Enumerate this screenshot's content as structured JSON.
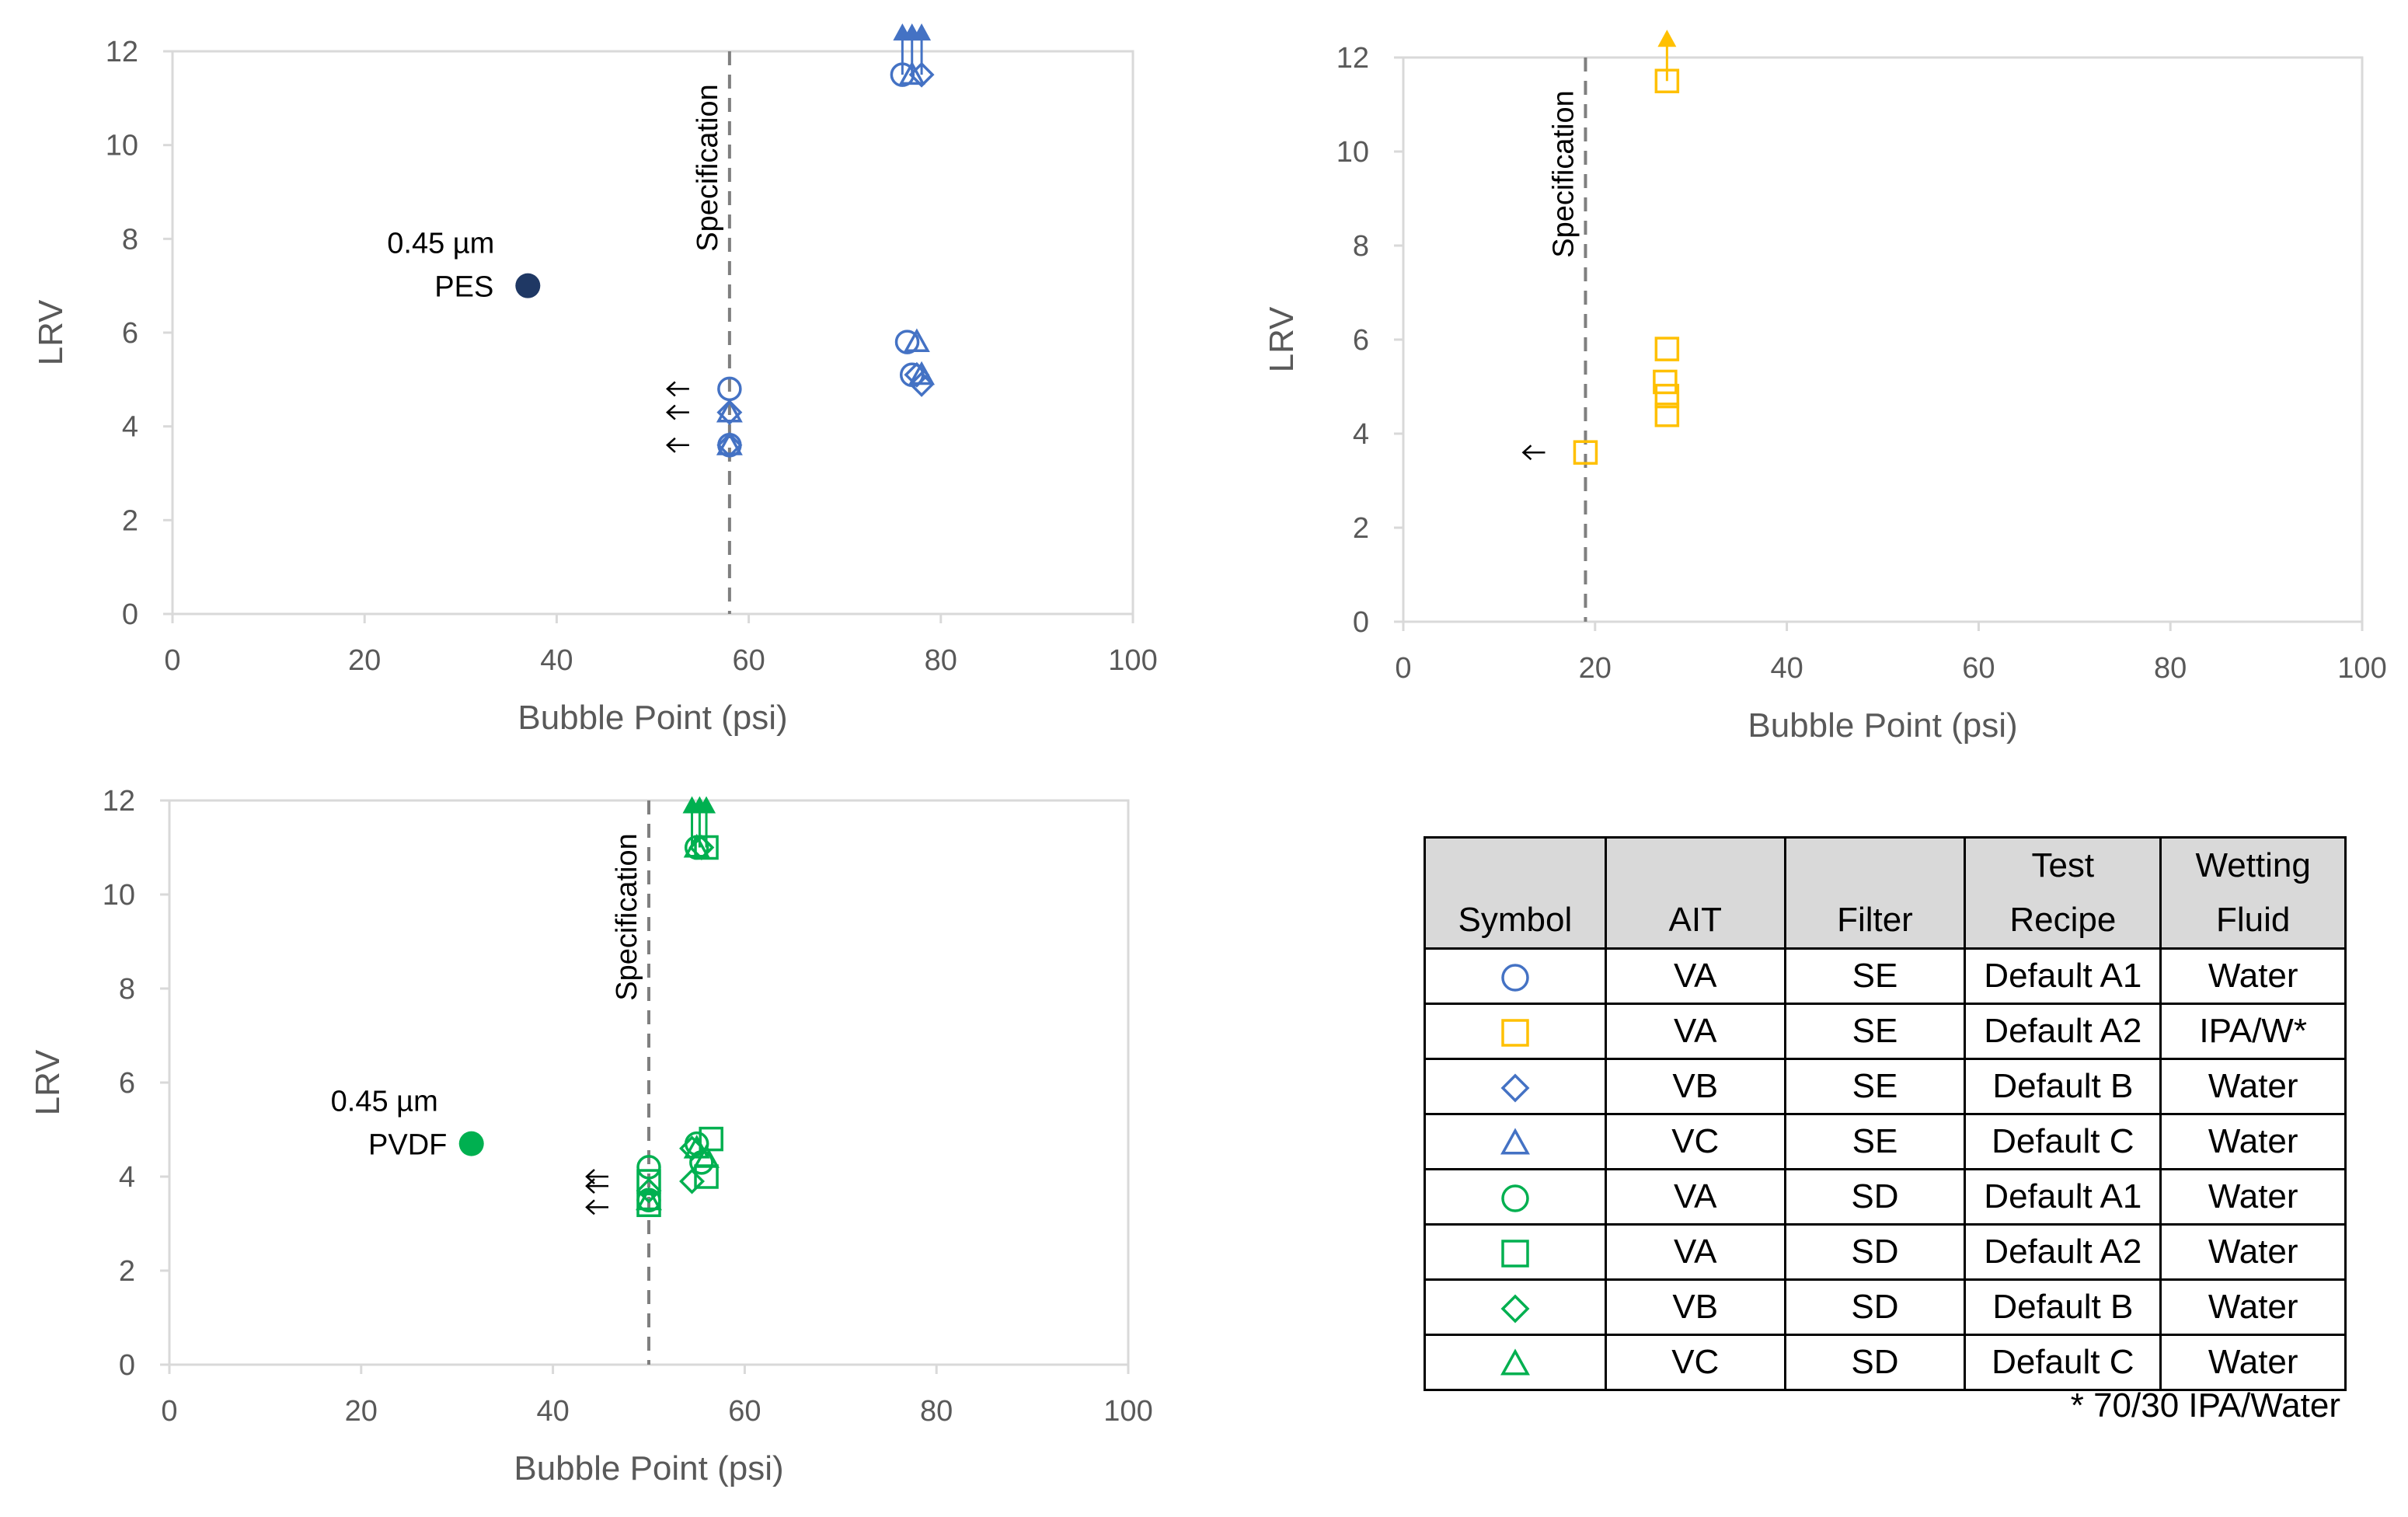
{
  "colors": {
    "blue": "#4472c4",
    "navy": "#1f3864",
    "yellow": "#ffc000",
    "green": "#00b050",
    "grid": "#d9d9d9",
    "spec_line": "#7f7f7f"
  },
  "chart_data": [
    {
      "type": "scatter",
      "panel": "top-left",
      "xlabel": "Bubble Point (psi)",
      "ylabel": "LRV",
      "xlim": [
        0,
        100
      ],
      "ylim": [
        0,
        12
      ],
      "xticks": [
        "0",
        "20",
        "40",
        "60",
        "80",
        "100"
      ],
      "yticks": [
        "0",
        "2",
        "4",
        "6",
        "8",
        "10",
        "12"
      ],
      "grid": "border only",
      "color": "#4472c4",
      "spec_line": {
        "x": 58,
        "label": "Specification"
      },
      "reference_point": {
        "x": 37,
        "y": 7,
        "color": "#1f3864",
        "label": [
          "0.45 µm",
          "PES"
        ]
      },
      "series": [
        {
          "marker": "circle",
          "points": [
            [
              58,
              4.8
            ],
            [
              58,
              3.6
            ],
            [
              76,
              11.5
            ],
            [
              76.5,
              5.8
            ],
            [
              77,
              5.1
            ]
          ]
        },
        {
          "marker": "diamond",
          "points": [
            [
              58,
              4.3
            ],
            [
              58,
              3.6
            ],
            [
              78,
              11.5
            ],
            [
              78,
              4.9
            ],
            [
              77.5,
              5.1
            ]
          ]
        },
        {
          "marker": "triangle",
          "points": [
            [
              58,
              4.3
            ],
            [
              58,
              3.6
            ],
            [
              77,
              11.5
            ],
            [
              77.5,
              5.8
            ],
            [
              78,
              5.1
            ]
          ]
        }
      ],
      "lower_bound_markers": [
        {
          "x": 58,
          "y": 4.8
        },
        {
          "x": 58,
          "y": 4.3
        },
        {
          "x": 58,
          "y": 3.6
        }
      ],
      "greater_than_markers": [
        {
          "x": 76,
          "y": 11.5
        },
        {
          "x": 77,
          "y": 11.5
        },
        {
          "x": 78,
          "y": 11.5
        }
      ]
    },
    {
      "type": "scatter",
      "panel": "top-right",
      "xlabel": "Bubble Point (psi)",
      "ylabel": "LRV",
      "xlim": [
        0,
        100
      ],
      "ylim": [
        0,
        12
      ],
      "xticks": [
        "0",
        "20",
        "40",
        "60",
        "80",
        "100"
      ],
      "yticks": [
        "0",
        "2",
        "4",
        "6",
        "8",
        "10",
        "12"
      ],
      "grid": "border only",
      "color": "#ffc000",
      "spec_line": {
        "x": 19,
        "label": "Specification"
      },
      "series": [
        {
          "marker": "square",
          "points": [
            [
              19,
              3.6
            ],
            [
              27.5,
              11.5
            ],
            [
              27.5,
              5.8
            ],
            [
              27.3,
              5.1
            ],
            [
              27.5,
              4.8
            ],
            [
              27.5,
              4.4
            ]
          ]
        }
      ],
      "lower_bound_markers": [
        {
          "x": 19,
          "y": 3.6
        }
      ],
      "greater_than_markers": [
        {
          "x": 27.5,
          "y": 11.5
        }
      ]
    },
    {
      "type": "scatter",
      "panel": "bottom-left",
      "xlabel": "Bubble Point (psi)",
      "ylabel": "LRV",
      "xlim": [
        0,
        100
      ],
      "ylim": [
        0,
        12
      ],
      "xticks": [
        "0",
        "20",
        "40",
        "60",
        "80",
        "100"
      ],
      "yticks": [
        "0",
        "2",
        "4",
        "6",
        "8",
        "10",
        "12"
      ],
      "grid": "border only",
      "color": "#00b050",
      "spec_line": {
        "x": 50,
        "label": "Specification"
      },
      "reference_point": {
        "x": 31.5,
        "y": 4.7,
        "color": "#00b050",
        "label": [
          "0.45 µm",
          "PVDF"
        ]
      },
      "series": [
        {
          "marker": "circle",
          "points": [
            [
              50,
              4.2
            ],
            [
              50,
              3.5
            ],
            [
              55,
              11
            ],
            [
              55,
              4.7
            ],
            [
              55.5,
              4.3
            ]
          ]
        },
        {
          "marker": "square",
          "points": [
            [
              50,
              3.9
            ],
            [
              50,
              3.4
            ],
            [
              56,
              11
            ],
            [
              56.5,
              4.8
            ],
            [
              56,
              4
            ]
          ]
        },
        {
          "marker": "diamond",
          "points": [
            [
              50,
              3.7
            ],
            [
              55.5,
              11
            ],
            [
              54.5,
              4.6
            ],
            [
              54.5,
              3.9
            ]
          ]
        },
        {
          "marker": "triangle",
          "points": [
            [
              50,
              3.5
            ],
            [
              55,
              11
            ],
            [
              55,
              4.6
            ],
            [
              56,
              4.4
            ]
          ]
        }
      ],
      "lower_bound_markers": [
        {
          "x": 50,
          "y": 4.0
        },
        {
          "x": 50,
          "y": 3.8
        },
        {
          "x": 50,
          "y": 3.35
        }
      ],
      "greater_than_markers": [
        {
          "x": 54.5,
          "y": 11
        },
        {
          "x": 55.3,
          "y": 11
        },
        {
          "x": 56,
          "y": 11
        }
      ]
    }
  ],
  "legend_table": {
    "headers": [
      "Symbol",
      "AIT",
      "Filter",
      "Test Recipe",
      "Wetting Fluid"
    ],
    "rows": [
      {
        "symbol": "circle",
        "color": "#4472c4",
        "ait": "VA",
        "filter": "SE",
        "recipe": "Default A1",
        "fluid": "Water"
      },
      {
        "symbol": "square",
        "color": "#ffc000",
        "ait": "VA",
        "filter": "SE",
        "recipe": "Default A2",
        "fluid": "IPA/W*"
      },
      {
        "symbol": "diamond",
        "color": "#4472c4",
        "ait": "VB",
        "filter": "SE",
        "recipe": "Default B",
        "fluid": "Water"
      },
      {
        "symbol": "triangle",
        "color": "#4472c4",
        "ait": "VC",
        "filter": "SE",
        "recipe": "Default C",
        "fluid": "Water"
      },
      {
        "symbol": "circle",
        "color": "#00b050",
        "ait": "VA",
        "filter": "SD",
        "recipe": "Default A1",
        "fluid": "Water"
      },
      {
        "symbol": "square",
        "color": "#00b050",
        "ait": "VA",
        "filter": "SD",
        "recipe": "Default A2",
        "fluid": "Water"
      },
      {
        "symbol": "diamond",
        "color": "#00b050",
        "ait": "VB",
        "filter": "SD",
        "recipe": "Default B",
        "fluid": "Water"
      },
      {
        "symbol": "triangle",
        "color": "#00b050",
        "ait": "VC",
        "filter": "SD",
        "recipe": "Default C",
        "fluid": "Water"
      }
    ],
    "footnote": "* 70/30 IPA/Water"
  }
}
